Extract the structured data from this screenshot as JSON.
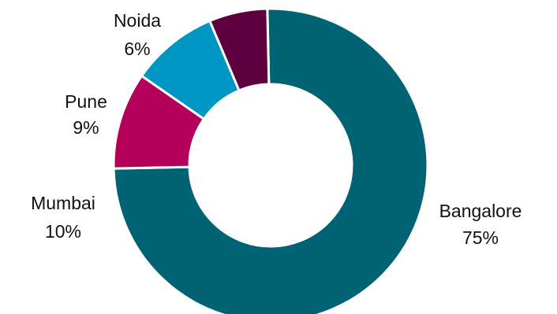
{
  "chart_data": {
    "type": "pie",
    "donut": true,
    "title": "",
    "legend": "none",
    "slices": [
      {
        "label": "Bangalore",
        "value": 75,
        "value_label": "75%",
        "color": "#006373"
      },
      {
        "label": "Mumbai",
        "value": 10,
        "value_label": "10%",
        "color": "#B5005B"
      },
      {
        "label": "Pune",
        "value": 9,
        "value_label": "9%",
        "color": "#0096C3"
      },
      {
        "label": "Noida",
        "value": 6,
        "value_label": "6%",
        "color": "#5E0040"
      }
    ]
  }
}
